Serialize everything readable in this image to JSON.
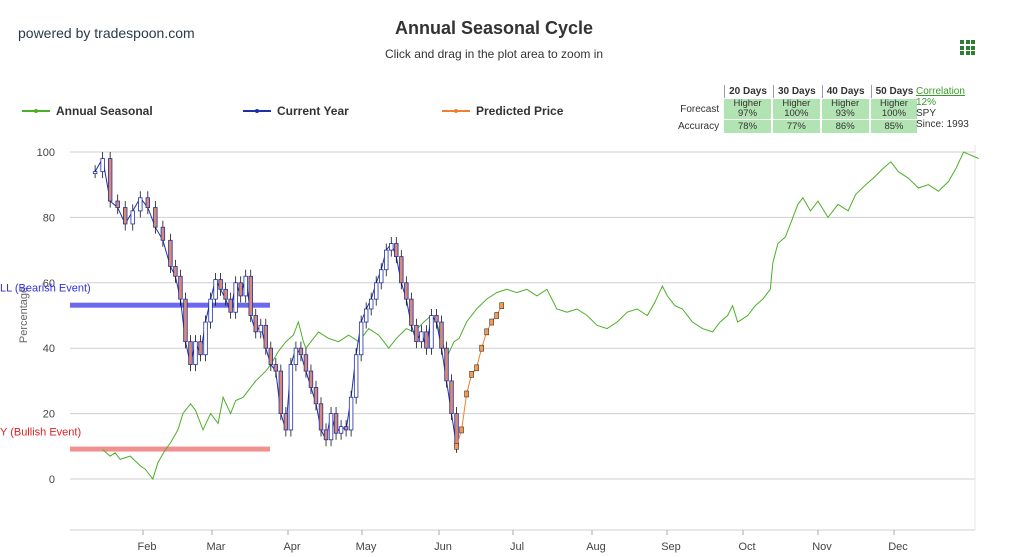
{
  "header": {
    "brand": "powered by tradespoon.com",
    "title": "Annual Seasonal Cycle",
    "subtitle": "Click and drag in the plot area to zoom in"
  },
  "legend": [
    {
      "name": "Annual Seasonal",
      "color": "#4caf28"
    },
    {
      "name": "Current Year",
      "color": "#1f2fa8"
    },
    {
      "name": "Predicted Price",
      "color": "#f08030"
    }
  ],
  "stats_table": {
    "columns": [
      "20 Days",
      "30 Days",
      "40 Days",
      "50 Days"
    ],
    "rows": [
      {
        "label": "Forecast",
        "cells": [
          [
            "Higher",
            "97%"
          ],
          [
            "Higher",
            "100%"
          ],
          [
            "Higher",
            "93%"
          ],
          [
            "Higher",
            "100%"
          ]
        ]
      },
      {
        "label": "Accuracy",
        "cells": [
          [
            "78%"
          ],
          [
            "77%"
          ],
          [
            "86%"
          ],
          [
            "85%"
          ]
        ]
      }
    ]
  },
  "correlation": {
    "label": "Correlation",
    "value": "12%",
    "symbol": "SPY",
    "since": "Since: 1993"
  },
  "chart_data": {
    "type": "line",
    "title": "Annual Seasonal Cycle",
    "ylabel": "Percentage",
    "ylim": [
      -15,
      102
    ],
    "yticks": [
      0,
      20,
      40,
      60,
      80,
      100
    ],
    "xlabels": [
      "Feb",
      "Mar",
      "Apr",
      "May",
      "Jun",
      "Jul",
      "Aug",
      "Sep",
      "Oct",
      "Nov",
      "Dec"
    ],
    "grid": true,
    "legend_position": "top",
    "plot_lines": [
      {
        "label": "LL (Bearish Event)",
        "value": 53,
        "color": "#6a6af0",
        "text_color": "#3030e0"
      },
      {
        "label": "Y (Bullish Event)",
        "value": 9,
        "color": "#f09090",
        "text_color": "#e02020"
      }
    ],
    "annual_seasonal": [
      [
        1.3,
        9
      ],
      [
        1.6,
        7
      ],
      [
        1.8,
        8
      ],
      [
        2,
        6
      ],
      [
        2.4,
        7
      ],
      [
        2.8,
        4
      ],
      [
        3.0,
        3
      ],
      [
        3.3,
        0
      ],
      [
        3.5,
        5
      ],
      [
        3.8,
        9
      ],
      [
        4.0,
        11
      ],
      [
        4.3,
        15
      ],
      [
        4.5,
        20
      ],
      [
        4.8,
        23
      ],
      [
        5,
        21
      ],
      [
        5.3,
        15
      ],
      [
        5.6,
        20
      ],
      [
        5.9,
        17
      ],
      [
        6.1,
        25
      ],
      [
        6.4,
        20
      ],
      [
        6.6,
        24
      ],
      [
        6.9,
        25
      ],
      [
        7.1,
        27
      ],
      [
        7.4,
        30
      ],
      [
        7.8,
        33
      ],
      [
        8,
        35
      ],
      [
        8.3,
        39
      ],
      [
        8.6,
        42
      ],
      [
        8.9,
        44
      ],
      [
        9.1,
        48
      ],
      [
        9.3,
        42
      ],
      [
        9.4,
        40
      ],
      [
        9.6,
        42
      ],
      [
        9.9,
        45
      ],
      [
        10.3,
        43
      ],
      [
        10.7,
        42
      ],
      [
        11.1,
        44
      ],
      [
        11.5,
        42
      ],
      [
        11.9,
        46
      ],
      [
        12.3,
        44
      ],
      [
        12.7,
        40
      ],
      [
        13.0,
        43
      ],
      [
        13.4,
        46
      ],
      [
        13.7,
        45
      ],
      [
        14.1,
        48
      ],
      [
        14.4,
        50
      ],
      [
        14.6,
        48
      ],
      [
        14.8,
        43
      ],
      [
        15.0,
        37
      ],
      [
        15.3,
        42
      ],
      [
        15.5,
        43
      ],
      [
        15.8,
        48
      ],
      [
        16.2,
        52
      ],
      [
        16.6,
        55
      ],
      [
        17.0,
        57
      ],
      [
        17.4,
        58
      ],
      [
        17.8,
        57
      ],
      [
        18.2,
        58
      ],
      [
        18.6,
        56
      ],
      [
        19.0,
        58
      ],
      [
        19.4,
        52
      ],
      [
        19.8,
        51
      ],
      [
        20.2,
        52
      ],
      [
        20.6,
        50
      ],
      [
        21.0,
        47
      ],
      [
        21.4,
        46
      ],
      [
        21.8,
        48
      ],
      [
        22.2,
        51
      ],
      [
        22.6,
        52
      ],
      [
        23.0,
        50
      ],
      [
        23.3,
        54
      ],
      [
        23.6,
        59
      ],
      [
        23.8,
        56
      ],
      [
        24.1,
        53
      ],
      [
        24.4,
        52
      ],
      [
        24.8,
        48
      ],
      [
        25.2,
        46
      ],
      [
        25.6,
        45
      ],
      [
        25.9,
        48
      ],
      [
        26.2,
        50
      ],
      [
        26.4,
        53
      ],
      [
        26.6,
        48
      ],
      [
        26.8,
        49
      ],
      [
        27.0,
        50
      ],
      [
        27.3,
        53
      ],
      [
        27.6,
        55
      ],
      [
        27.9,
        58
      ],
      [
        28.0,
        66
      ],
      [
        28.2,
        72
      ],
      [
        28.5,
        74
      ],
      [
        28.8,
        80
      ],
      [
        29.0,
        84
      ],
      [
        29.2,
        86
      ],
      [
        29.5,
        82
      ],
      [
        29.8,
        85
      ],
      [
        30.2,
        80
      ],
      [
        30.6,
        84
      ],
      [
        31.0,
        82
      ],
      [
        31.3,
        87
      ],
      [
        31.7,
        90
      ],
      [
        32.0,
        92
      ],
      [
        32.4,
        95
      ],
      [
        32.7,
        97
      ],
      [
        33.0,
        94
      ],
      [
        33.4,
        92
      ],
      [
        33.8,
        89
      ],
      [
        34.2,
        90
      ],
      [
        34.6,
        88
      ],
      [
        35.0,
        91
      ],
      [
        35.3,
        95
      ],
      [
        35.6,
        100
      ],
      [
        35.9,
        99
      ],
      [
        36.2,
        98
      ]
    ],
    "current_year": [
      [
        1.0,
        94
      ],
      [
        1.3,
        98
      ],
      [
        1.6,
        85
      ],
      [
        1.9,
        83
      ],
      [
        2.2,
        78
      ],
      [
        2.5,
        82
      ],
      [
        2.8,
        86
      ],
      [
        3.1,
        83
      ],
      [
        3.4,
        77
      ],
      [
        3.7,
        73
      ],
      [
        4.0,
        65
      ],
      [
        4.2,
        62
      ],
      [
        4.4,
        55
      ],
      [
        4.6,
        42
      ],
      [
        4.8,
        35
      ],
      [
        5.0,
        42
      ],
      [
        5.2,
        38
      ],
      [
        5.4,
        48
      ],
      [
        5.6,
        55
      ],
      [
        5.8,
        61
      ],
      [
        6.0,
        58
      ],
      [
        6.2,
        55
      ],
      [
        6.4,
        51
      ],
      [
        6.6,
        60
      ],
      [
        6.8,
        56
      ],
      [
        7.0,
        62
      ],
      [
        7.2,
        50
      ],
      [
        7.4,
        45
      ],
      [
        7.6,
        47
      ],
      [
        7.8,
        40
      ],
      [
        8.0,
        35
      ],
      [
        8.2,
        33
      ],
      [
        8.4,
        20
      ],
      [
        8.6,
        15
      ],
      [
        8.8,
        35
      ],
      [
        9.0,
        40
      ],
      [
        9.2,
        38
      ],
      [
        9.4,
        33
      ],
      [
        9.6,
        28
      ],
      [
        9.8,
        23
      ],
      [
        10.0,
        15
      ],
      [
        10.2,
        12
      ],
      [
        10.4,
        20
      ],
      [
        10.6,
        14
      ],
      [
        10.8,
        16
      ],
      [
        11.0,
        15
      ],
      [
        11.2,
        25
      ],
      [
        11.4,
        38
      ],
      [
        11.6,
        48
      ],
      [
        11.8,
        52
      ],
      [
        12.0,
        55
      ],
      [
        12.2,
        60
      ],
      [
        12.4,
        64
      ],
      [
        12.6,
        70
      ],
      [
        12.8,
        72
      ],
      [
        13.0,
        68
      ],
      [
        13.2,
        60
      ],
      [
        13.4,
        55
      ],
      [
        13.6,
        47
      ],
      [
        13.8,
        42
      ],
      [
        14.0,
        45
      ],
      [
        14.2,
        40
      ],
      [
        14.4,
        50
      ],
      [
        14.6,
        48
      ],
      [
        14.8,
        40
      ],
      [
        15.0,
        30
      ],
      [
        15.2,
        20
      ],
      [
        15.4,
        10
      ]
    ],
    "predicted_price": [
      [
        15.4,
        10
      ],
      [
        15.6,
        15
      ],
      [
        15.8,
        26
      ],
      [
        16.0,
        32
      ],
      [
        16.2,
        34
      ],
      [
        16.4,
        40
      ],
      [
        16.6,
        45
      ],
      [
        16.8,
        48
      ],
      [
        17.0,
        50
      ],
      [
        17.2,
        53
      ]
    ]
  }
}
